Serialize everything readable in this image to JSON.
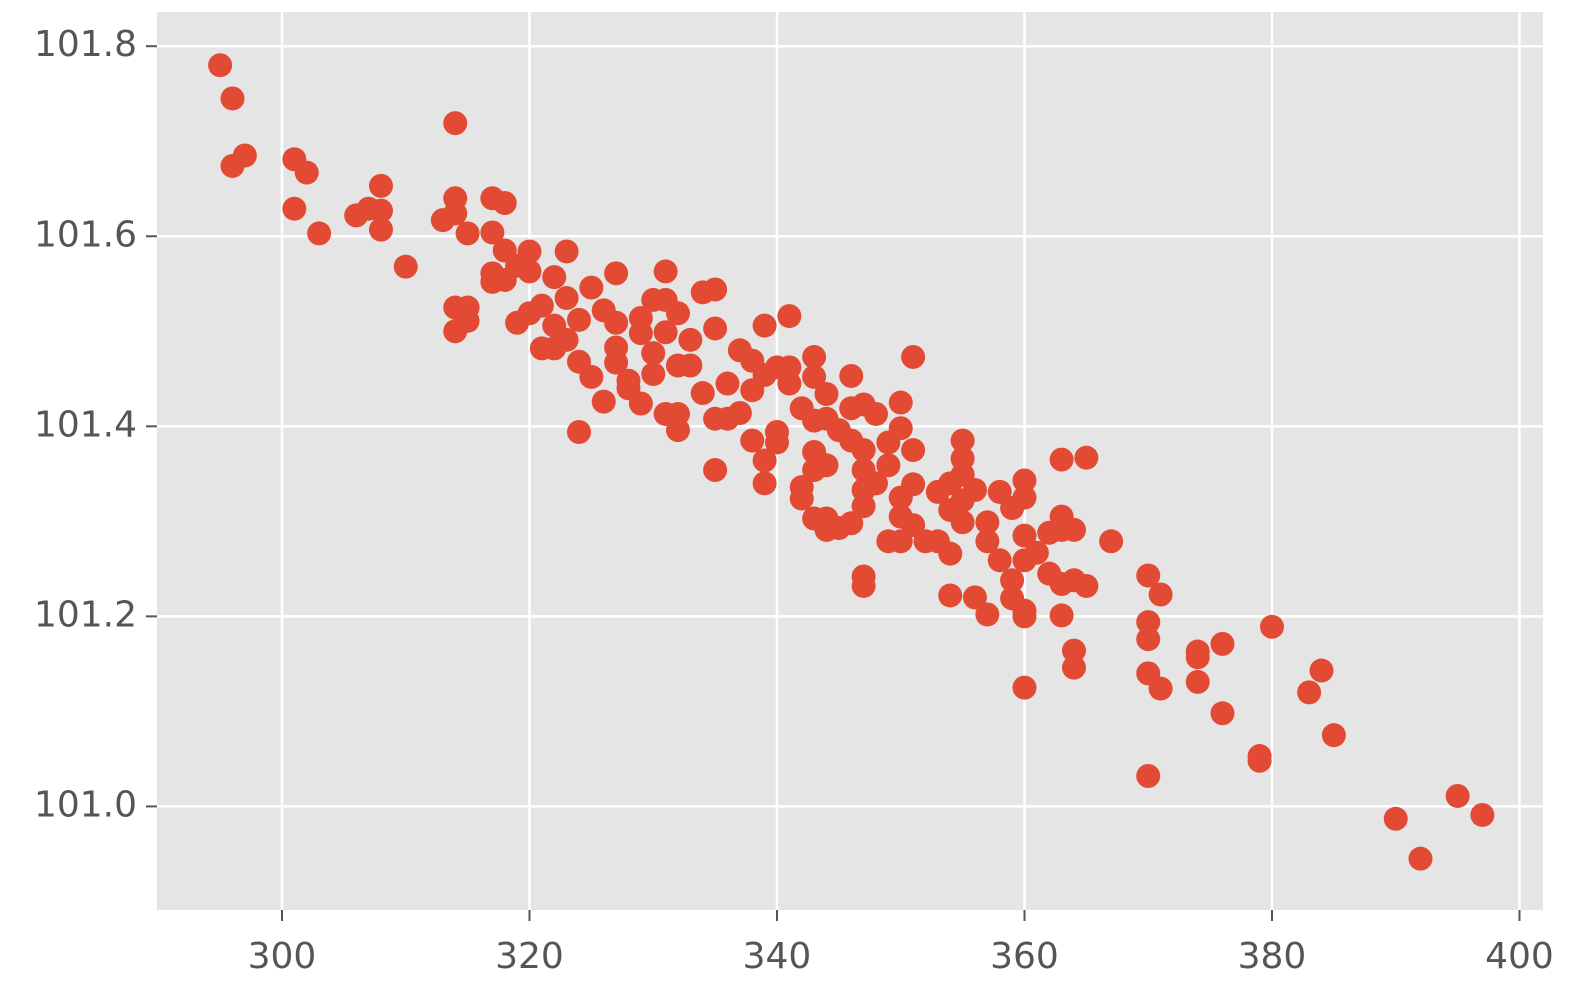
{
  "chart_data": {
    "type": "scatter",
    "color": "#E24A33",
    "grid": true,
    "xlim": [
      289.9,
      401.9
    ],
    "ylim": [
      100.891,
      101.836
    ],
    "xticks": [
      300,
      320,
      340,
      360,
      380,
      400
    ],
    "yticks": [
      {
        "value": 101,
        "label": "101.0"
      },
      101.2,
      101.4,
      101.6,
      101.8
    ],
    "x": [
      295,
      296,
      296,
      297,
      301,
      302,
      301,
      303,
      306,
      307,
      308,
      308,
      308,
      310,
      314,
      314,
      313,
      314,
      315,
      314,
      315,
      315,
      314,
      317,
      318,
      317,
      318,
      317,
      317,
      318,
      319,
      320,
      320,
      322,
      323,
      319,
      320,
      321,
      321,
      322,
      322,
      323,
      323,
      324,
      324,
      325,
      325,
      324,
      326,
      326,
      327,
      327,
      327,
      327,
      328,
      328,
      329,
      329,
      329,
      330,
      330,
      330,
      331,
      331,
      331,
      331,
      332,
      332,
      332,
      332,
      333,
      333,
      334,
      334,
      335,
      335,
      335,
      335,
      336,
      336,
      337,
      337,
      338,
      338,
      338,
      339,
      339,
      339,
      339,
      340,
      340,
      340,
      341,
      341,
      341,
      342,
      342,
      342,
      343,
      343,
      343,
      343,
      343,
      343,
      344,
      344,
      344,
      344,
      344,
      345,
      345,
      346,
      346,
      346,
      346,
      347,
      347,
      347,
      347,
      347,
      347,
      347,
      348,
      348,
      349,
      349,
      349,
      350,
      350,
      350,
      350,
      350,
      351,
      351,
      351,
      351,
      352,
      353,
      353,
      354,
      354,
      354,
      354,
      355,
      355,
      355,
      355,
      355,
      356,
      356,
      357,
      357,
      357,
      358,
      358,
      359,
      359,
      359,
      360,
      360,
      360,
      360,
      360,
      360,
      360,
      361,
      362,
      362,
      363,
      363,
      363,
      363,
      363,
      364,
      364,
      364,
      364,
      365,
      365,
      367,
      370,
      370,
      370,
      370,
      370,
      371,
      371,
      374,
      374,
      374,
      376,
      376,
      379,
      379,
      380,
      383,
      384,
      385,
      390,
      392,
      395,
      397
    ],
    "values": [
      101.78,
      101.745,
      101.674,
      101.685,
      101.681,
      101.667,
      101.629,
      101.603,
      101.622,
      101.629,
      101.653,
      101.627,
      101.607,
      101.568,
      101.719,
      101.64,
      101.617,
      101.624,
      101.603,
      101.525,
      101.525,
      101.511,
      101.5,
      101.64,
      101.635,
      101.604,
      101.585,
      101.561,
      101.552,
      101.554,
      101.569,
      101.584,
      101.563,
      101.557,
      101.584,
      101.509,
      101.519,
      101.527,
      101.482,
      101.482,
      101.506,
      101.491,
      101.535,
      101.512,
      101.468,
      101.546,
      101.452,
      101.394,
      101.522,
      101.426,
      101.561,
      101.509,
      101.483,
      101.467,
      101.448,
      101.44,
      101.514,
      101.498,
      101.424,
      101.533,
      101.477,
      101.455,
      101.563,
      101.533,
      101.499,
      101.413,
      101.519,
      101.464,
      101.413,
      101.396,
      101.491,
      101.464,
      101.541,
      101.435,
      101.544,
      101.503,
      101.408,
      101.354,
      101.445,
      101.408,
      101.48,
      101.414,
      101.469,
      101.438,
      101.385,
      101.506,
      101.454,
      101.364,
      101.34,
      101.462,
      101.394,
      101.383,
      101.516,
      101.462,
      101.445,
      101.419,
      101.336,
      101.324,
      101.473,
      101.452,
      101.406,
      101.373,
      101.354,
      101.303,
      101.434,
      101.408,
      101.359,
      101.303,
      101.291,
      101.396,
      101.293,
      101.453,
      101.419,
      101.385,
      101.298,
      101.423,
      101.375,
      101.354,
      101.333,
      101.316,
      101.242,
      101.232,
      101.413,
      101.34,
      101.383,
      101.359,
      101.279,
      101.425,
      101.398,
      101.325,
      101.305,
      101.279,
      101.473,
      101.375,
      101.339,
      101.296,
      101.279,
      101.331,
      101.279,
      101.34,
      101.312,
      101.266,
      101.222,
      101.385,
      101.366,
      101.349,
      101.322,
      101.299,
      101.333,
      101.22,
      101.299,
      101.279,
      101.202,
      101.331,
      101.259,
      101.314,
      101.238,
      101.219,
      101.343,
      101.325,
      101.285,
      101.259,
      101.206,
      101.2,
      101.125,
      101.267,
      101.288,
      101.245,
      101.365,
      101.305,
      101.291,
      101.234,
      101.201,
      101.291,
      101.238,
      101.164,
      101.146,
      101.367,
      101.232,
      101.279,
      101.243,
      101.194,
      101.176,
      101.14,
      101.032,
      101.223,
      101.124,
      101.163,
      101.157,
      101.131,
      101.171,
      101.098,
      101.053,
      101.048,
      101.189,
      101.12,
      101.143,
      101.075,
      100.987,
      100.945,
      101.011,
      100.991
    ]
  }
}
